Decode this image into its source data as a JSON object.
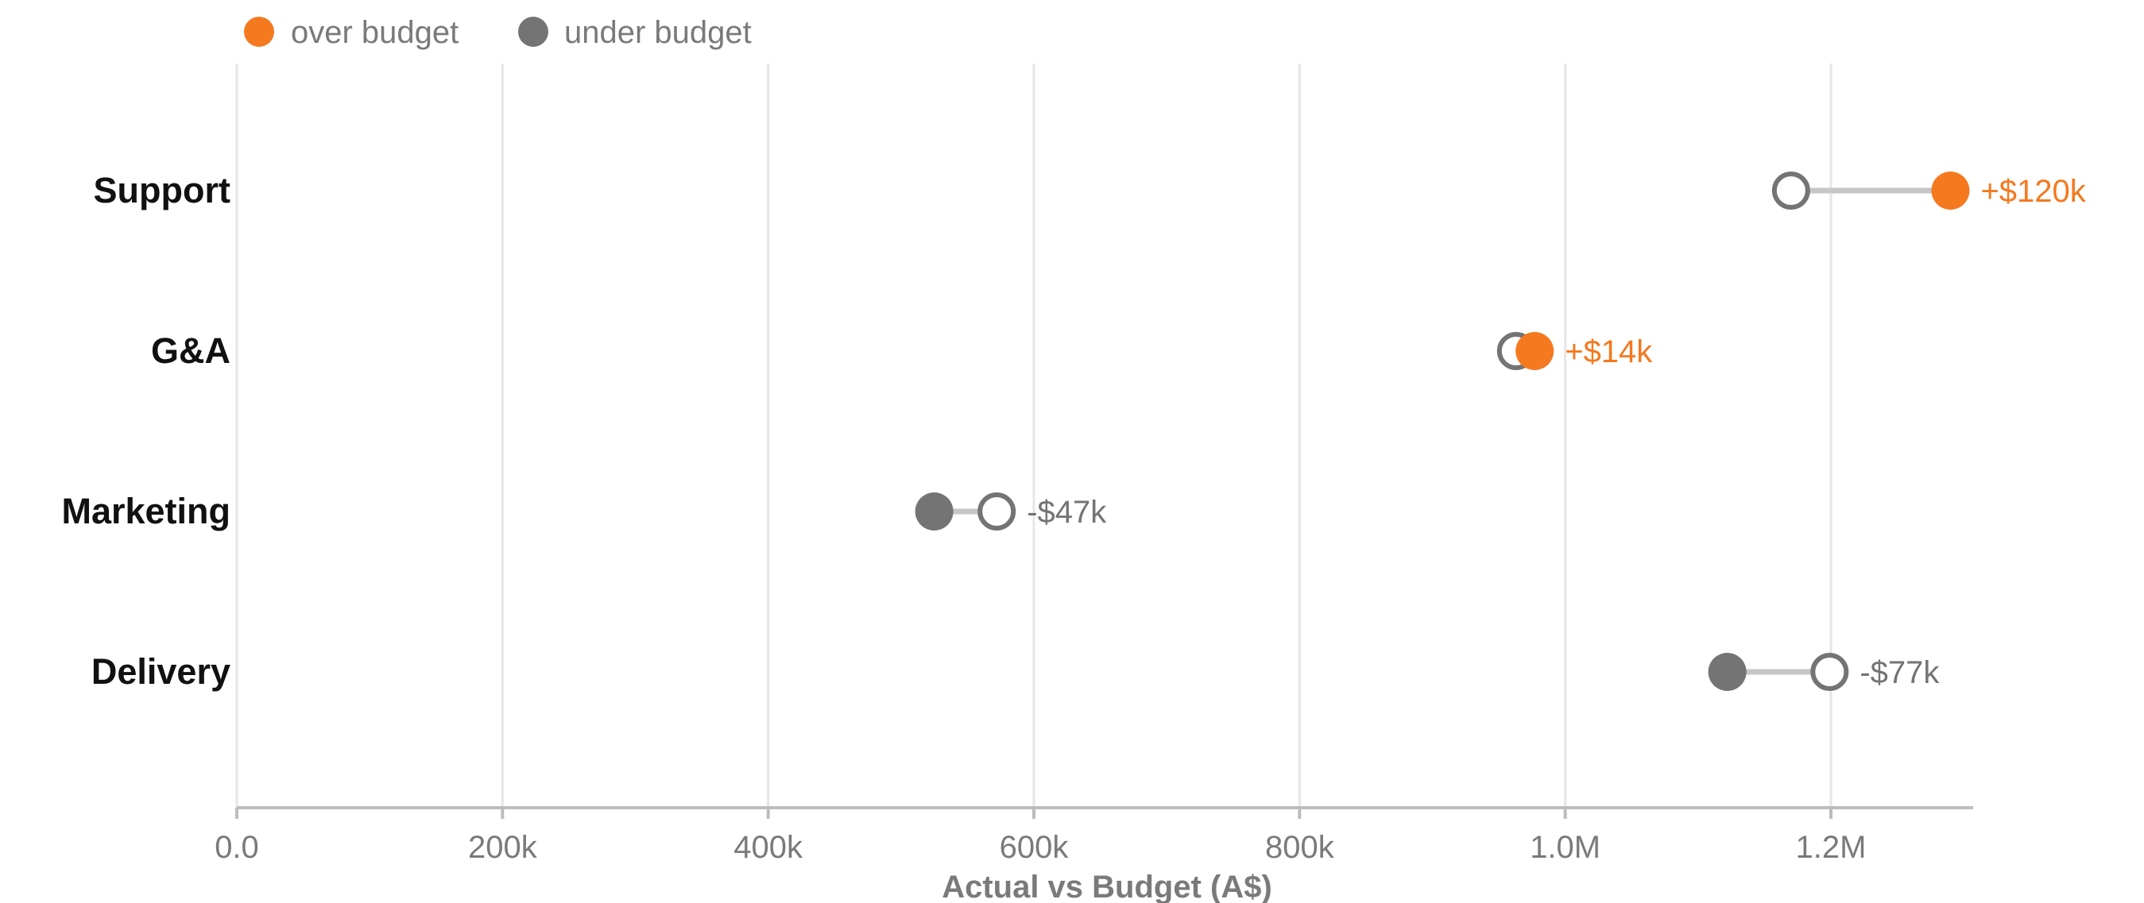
{
  "chart_data": {
    "type": "dumbbell",
    "xlabel": "Actual vs Budget (A$)",
    "xlim": [
      0,
      1300000
    ],
    "grid": true,
    "legend_position": "top-left",
    "legend": [
      {
        "key": "over",
        "label": "over budget",
        "color": "#f5791f"
      },
      {
        "key": "under",
        "label": "under budget",
        "color": "#747474"
      }
    ],
    "ticks": [
      {
        "value": 0,
        "label": "0.0"
      },
      {
        "value": 200000,
        "label": "200k"
      },
      {
        "value": 400000,
        "label": "400k"
      },
      {
        "value": 600000,
        "label": "600k"
      },
      {
        "value": 800000,
        "label": "800k"
      },
      {
        "value": 1000000,
        "label": "1.0M"
      },
      {
        "value": 1200000,
        "label": "1.2M"
      }
    ],
    "categories": [
      "Support",
      "G&A",
      "Marketing",
      "Delivery"
    ],
    "rows": [
      {
        "category": "Support",
        "budget": 1170000,
        "actual": 1290000,
        "diff_label": "+$120k",
        "status": "over"
      },
      {
        "category": "G&A",
        "budget": 963000,
        "actual": 977000,
        "diff_label": "+$14k",
        "status": "over"
      },
      {
        "category": "Marketing",
        "budget": 572000,
        "actual": 525000,
        "diff_label": "-$47k",
        "status": "under"
      },
      {
        "category": "Delivery",
        "budget": 1199000,
        "actual": 1122000,
        "diff_label": "-$77k",
        "status": "under"
      }
    ],
    "colors": {
      "over": "#f5791f",
      "under": "#747474",
      "budget_marker": "#747474",
      "connector": "#c6c6c6",
      "grid": "#e6e6e6",
      "axis": "#bdbdbd"
    }
  }
}
